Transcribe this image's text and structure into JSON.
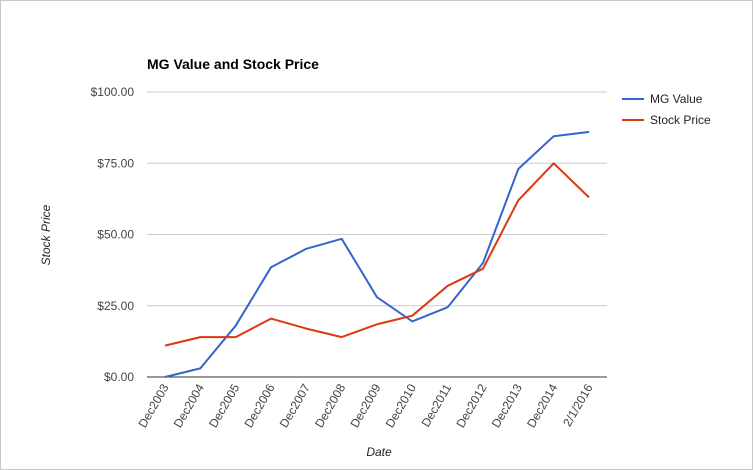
{
  "chart_data": {
    "type": "line",
    "title": "MG Value and Stock Price",
    "xlabel": "Date",
    "ylabel": "Stock Price",
    "categories": [
      "Dec2003",
      "Dec2004",
      "Dec2005",
      "Dec2006",
      "Dec2007",
      "Dec2008",
      "Dec2009",
      "Dec2010",
      "Dec2011",
      "Dec2012",
      "Dec2013",
      "Dec2014",
      "2/1/2016"
    ],
    "series": [
      {
        "name": "MG Value",
        "color": "#3366cc",
        "values": [
          0,
          3,
          18,
          38.5,
          45,
          48.5,
          28,
          19.5,
          24.5,
          40,
          73,
          84.5,
          86
        ]
      },
      {
        "name": "Stock Price",
        "color": "#dc3912",
        "values": [
          11,
          14,
          14,
          20.5,
          17,
          14,
          18.5,
          21.5,
          32,
          38,
          62,
          75,
          63
        ]
      }
    ],
    "yticks": [
      "$0.00",
      "$25.00",
      "$50.00",
      "$75.00",
      "$100.00"
    ],
    "ylim": [
      0,
      100
    ],
    "grid": true,
    "legend_position": "right"
  }
}
